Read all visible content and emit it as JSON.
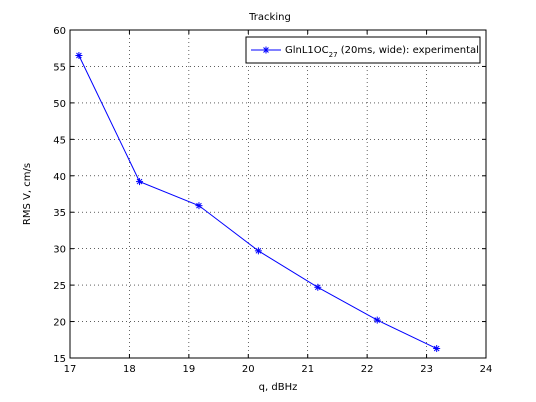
{
  "chart_data": {
    "type": "line",
    "title": "Tracking",
    "xlabel": "q, dBHz",
    "ylabel": "RMS V, cm/s",
    "xlim": [
      17,
      24
    ],
    "ylim": [
      15,
      60
    ],
    "xticks": [
      17,
      18,
      19,
      20,
      21,
      22,
      23,
      24
    ],
    "yticks": [
      15,
      20,
      25,
      30,
      35,
      40,
      45,
      50,
      55,
      60
    ],
    "grid": true,
    "legend": {
      "placement": "top-right",
      "label_main": "GlnL1OC",
      "label_sub": "27",
      "label_rest": " (20ms, wide): experimental"
    },
    "series": [
      {
        "name": "GlnL1OC27 (20ms, wide): experimental",
        "color": "#0000ff",
        "marker": "asterisk",
        "x": [
          17.15,
          18.17,
          19.17,
          20.17,
          21.17,
          22.17,
          23.17
        ],
        "y": [
          56.5,
          39.2,
          35.9,
          29.7,
          24.7,
          20.2,
          16.3
        ]
      }
    ]
  }
}
